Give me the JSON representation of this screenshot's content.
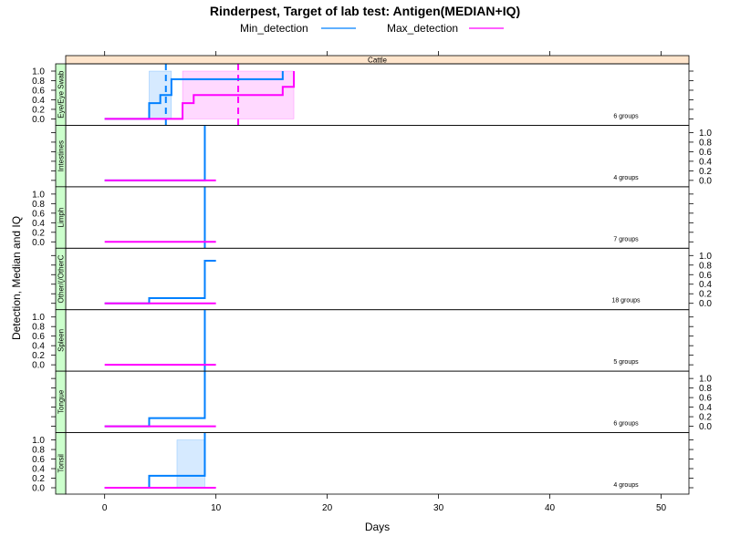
{
  "colors": {
    "min_detection": "#0080ff",
    "max_detection": "#ff00ff",
    "strip_header": "#ffe5cc",
    "strip_panel": "#ccffcc",
    "min_band": "#d6eaff",
    "max_band": "#ffd9ff"
  },
  "chart_data": {
    "type": "line",
    "title": "Rinderpest, Target of lab test: Antigen(MEDIAN+IQ)",
    "xlabel": "Days",
    "ylabel": "Detection, Median and IQ",
    "strip_label": "Cattle",
    "xlim": [
      -3.5,
      52.5
    ],
    "ylim": [
      -0.05,
      1.1
    ],
    "x_ticks": [
      0,
      10,
      20,
      30,
      40,
      50
    ],
    "y_ticks": [
      0.0,
      0.2,
      0.4,
      0.6,
      0.8,
      1.0
    ],
    "y_tick_labels": [
      "0.0",
      "0.2",
      "0.4",
      "0.6",
      "0.8",
      "1.0"
    ],
    "legend": {
      "placement": "top",
      "entries": [
        "Min_detection",
        "Max_detection"
      ]
    },
    "panels": [
      {
        "name": "Eye/Eye Swab",
        "groups_label": "6 groups",
        "axis_side": "left",
        "series": [
          {
            "name": "Min_detection",
            "x": [
              0,
              4,
              4,
              5,
              5,
              5.5,
              5.5,
              6,
              6,
              16,
              16
            ],
            "y": [
              0,
              0,
              0.33,
              0.33,
              0.5,
              0.5,
              0.5,
              0.5,
              0.83,
              0.83,
              1.0
            ]
          },
          {
            "name": "Max_detection",
            "x": [
              0,
              7,
              7,
              8,
              8,
              16,
              16,
              17,
              17
            ],
            "y": [
              0,
              0,
              0.33,
              0.33,
              0.5,
              0.5,
              0.67,
              0.67,
              1.0
            ]
          }
        ],
        "bands": [
          {
            "series": "Min_detection",
            "x": [
              4,
              6
            ],
            "y": [
              0,
              1.0
            ]
          },
          {
            "series": "Max_detection",
            "x": [
              7,
              17
            ],
            "y": [
              0,
              1.0
            ]
          }
        ],
        "median_lines": [
          {
            "series": "Min_detection",
            "x": 5.5
          },
          {
            "series": "Max_detection",
            "x": 12
          }
        ]
      },
      {
        "name": "Intestines",
        "groups_label": "4 groups",
        "axis_side": "right",
        "series": [
          {
            "name": "Min_detection",
            "x": [
              0,
              9,
              9
            ],
            "y": [
              0,
              0,
              1.1
            ]
          },
          {
            "name": "Max_detection",
            "x": [
              0,
              10
            ],
            "y": [
              0,
              0
            ]
          }
        ],
        "bands": [],
        "median_lines": []
      },
      {
        "name": "Limph",
        "groups_label": "7 groups",
        "axis_side": "left",
        "series": [
          {
            "name": "Min_detection",
            "x": [
              9,
              9
            ],
            "y": [
              -0.05,
              1.1
            ]
          },
          {
            "name": "Max_detection",
            "x": [
              0,
              10
            ],
            "y": [
              0,
              0
            ]
          }
        ],
        "bands": [],
        "median_lines": []
      },
      {
        "name": "Other/(/OtherC",
        "groups_label": "18 groups",
        "axis_side": "right",
        "series": [
          {
            "name": "Min_detection",
            "x": [
              0,
              4,
              4,
              9,
              9,
              10
            ],
            "y": [
              0,
              0,
              0.11,
              0.11,
              0.89,
              0.89
            ]
          },
          {
            "name": "Max_detection",
            "x": [
              0,
              10
            ],
            "y": [
              0,
              0
            ]
          }
        ],
        "bands": [],
        "median_lines": []
      },
      {
        "name": "Spleen",
        "groups_label": "5 groups",
        "axis_side": "left",
        "series": [
          {
            "name": "Min_detection",
            "x": [
              9,
              9
            ],
            "y": [
              -0.05,
              1.1
            ]
          },
          {
            "name": "Max_detection",
            "x": [
              0,
              10
            ],
            "y": [
              0,
              0
            ]
          }
        ],
        "bands": [],
        "median_lines": []
      },
      {
        "name": "Tongue",
        "groups_label": "6 groups",
        "axis_side": "right",
        "series": [
          {
            "name": "Min_detection",
            "x": [
              0,
              4,
              4,
              9,
              9
            ],
            "y": [
              0,
              0,
              0.17,
              0.17,
              1.1
            ]
          },
          {
            "name": "Max_detection",
            "x": [
              0,
              10
            ],
            "y": [
              0,
              0
            ]
          }
        ],
        "bands": [],
        "median_lines": []
      },
      {
        "name": "Tonsil",
        "groups_label": "4 groups",
        "axis_side": "left",
        "series": [
          {
            "name": "Min_detection",
            "x": [
              0,
              4,
              4,
              9,
              9
            ],
            "y": [
              0,
              0,
              0.25,
              0.25,
              1.1
            ]
          },
          {
            "name": "Max_detection",
            "x": [
              0,
              10
            ],
            "y": [
              0,
              0
            ]
          }
        ],
        "bands": [
          {
            "series": "Min_detection",
            "x": [
              6.5,
              9
            ],
            "y": [
              0,
              1.0
            ]
          }
        ],
        "median_lines": []
      }
    ]
  }
}
